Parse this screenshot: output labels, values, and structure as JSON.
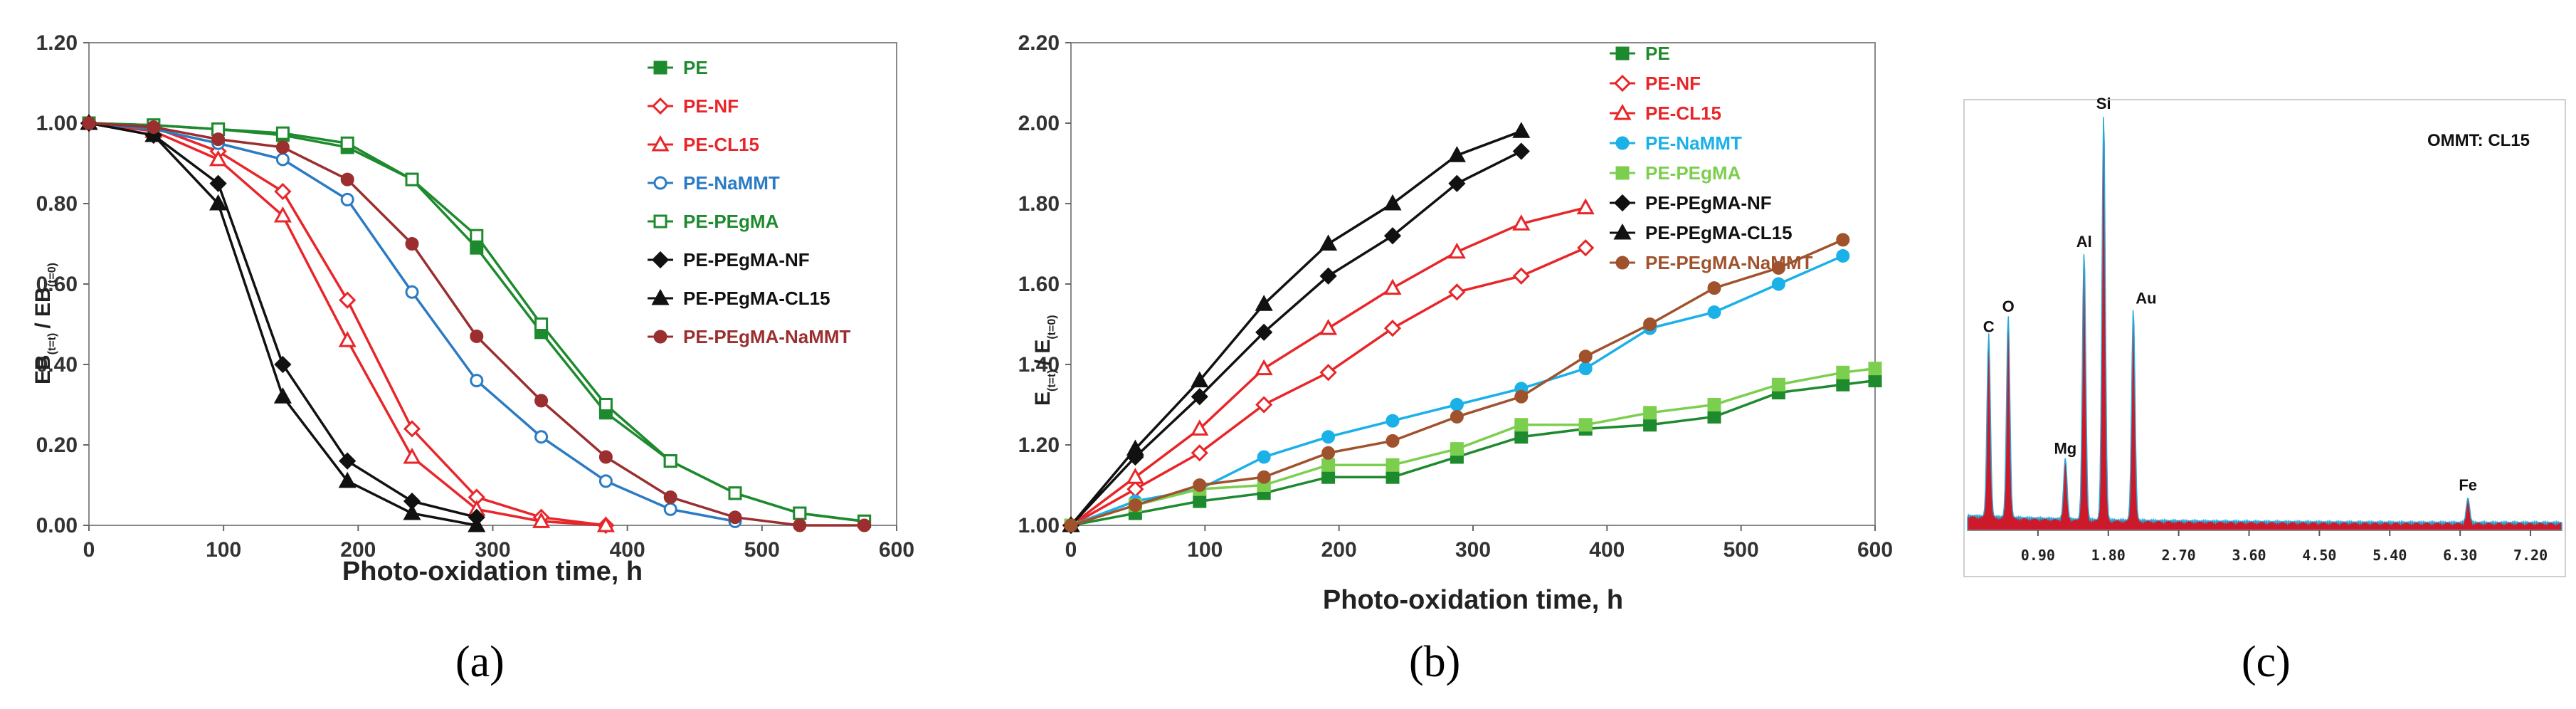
{
  "chart_data": [
    {
      "type": "line",
      "panel_label": "(a)",
      "xlabel": "Photo-oxidation time, h",
      "ylabel": "EB (t=t) / EB (t=0)",
      "ylabel_main": "EB",
      "ylabel_sub1": "(t=t)",
      "ylabel_sep": "/ EB",
      "ylabel_sub2": "(t=0)",
      "xlim": [
        0,
        600
      ],
      "ylim": [
        0,
        1.2
      ],
      "xticks": [
        "0",
        "100",
        "200",
        "300",
        "400",
        "500",
        "600"
      ],
      "yticks": [
        "0.00",
        "0.20",
        "0.40",
        "0.60",
        "0.80",
        "1.00",
        "1.20"
      ],
      "series": [
        {
          "name": "PE",
          "color": "#1e8a2e",
          "marker": "square-filled",
          "x": [
            0,
            48,
            96,
            144,
            192,
            240,
            288,
            336,
            384,
            432,
            480,
            528,
            576
          ],
          "y": [
            1.0,
            0.995,
            0.985,
            0.97,
            0.94,
            0.86,
            0.69,
            0.48,
            0.28,
            0.16,
            0.08,
            0.03,
            0.01
          ]
        },
        {
          "name": "PE-NF",
          "color": "#e8262a",
          "marker": "diamond-open",
          "x": [
            0,
            48,
            96,
            144,
            192,
            240,
            288,
            336,
            384
          ],
          "y": [
            1.0,
            0.99,
            0.93,
            0.83,
            0.56,
            0.24,
            0.07,
            0.02,
            0.0
          ]
        },
        {
          "name": "PE-CL15",
          "color": "#e8262a",
          "marker": "triangle-open",
          "x": [
            0,
            48,
            96,
            144,
            192,
            240,
            288,
            336,
            384
          ],
          "y": [
            1.0,
            0.98,
            0.91,
            0.77,
            0.46,
            0.17,
            0.04,
            0.01,
            0.0
          ]
        },
        {
          "name": "PE-NaMMT",
          "color": "#2b7bc4",
          "marker": "circle-open",
          "x": [
            0,
            48,
            96,
            144,
            192,
            240,
            288,
            336,
            384,
            432,
            480
          ],
          "y": [
            1.0,
            0.985,
            0.95,
            0.91,
            0.81,
            0.58,
            0.36,
            0.22,
            0.11,
            0.04,
            0.01
          ]
        },
        {
          "name": "PE-PEgMA",
          "color": "#1e8a2e",
          "marker": "square-open",
          "x": [
            0,
            48,
            96,
            144,
            192,
            240,
            288,
            336,
            384,
            432,
            480,
            528,
            576
          ],
          "y": [
            1.0,
            0.995,
            0.985,
            0.975,
            0.95,
            0.86,
            0.72,
            0.5,
            0.3,
            0.16,
            0.08,
            0.03,
            0.01
          ]
        },
        {
          "name": "PE-PEgMA-NF",
          "color": "#111111",
          "marker": "diamond-filled",
          "x": [
            0,
            48,
            96,
            144,
            192,
            240,
            288
          ],
          "y": [
            1.0,
            0.97,
            0.85,
            0.4,
            0.16,
            0.06,
            0.02
          ]
        },
        {
          "name": "PE-PEgMA-CL15",
          "color": "#111111",
          "marker": "triangle-filled",
          "x": [
            0,
            48,
            96,
            144,
            192,
            240,
            288
          ],
          "y": [
            1.0,
            0.97,
            0.8,
            0.32,
            0.11,
            0.03,
            0.0
          ]
        },
        {
          "name": "PE-PEgMA-NaMMT",
          "color": "#9b2e2e",
          "marker": "circle-filled",
          "x": [
            0,
            48,
            96,
            144,
            192,
            240,
            288,
            336,
            384,
            432,
            480,
            528,
            576
          ],
          "y": [
            1.0,
            0.99,
            0.96,
            0.94,
            0.86,
            0.7,
            0.47,
            0.31,
            0.17,
            0.07,
            0.02,
            0.0,
            0.0
          ]
        }
      ]
    },
    {
      "type": "line",
      "panel_label": "(b)",
      "xlabel": "Photo-oxidation time, h",
      "ylabel": "E (t=t) / E (t=0)",
      "ylabel_main": "E",
      "ylabel_sub1": "(t=t)",
      "ylabel_sep": "/ E",
      "ylabel_sub2": "(t=0)",
      "xlim": [
        0,
        600
      ],
      "ylim": [
        1.0,
        2.2
      ],
      "xticks": [
        "0",
        "100",
        "200",
        "300",
        "400",
        "500",
        "600"
      ],
      "yticks": [
        "1.00",
        "1.20",
        "1.40",
        "1.60",
        "1.80",
        "2.00",
        "2.20"
      ],
      "series": [
        {
          "name": "PE",
          "color": "#1e8a2e",
          "marker": "square-filled",
          "x": [
            0,
            48,
            96,
            144,
            192,
            240,
            288,
            336,
            384,
            432,
            480,
            528,
            576,
            600
          ],
          "y": [
            1.0,
            1.03,
            1.06,
            1.08,
            1.12,
            1.12,
            1.17,
            1.22,
            1.24,
            1.25,
            1.27,
            1.33,
            1.35,
            1.36
          ]
        },
        {
          "name": "PE-NF",
          "color": "#e8262a",
          "marker": "diamond-open",
          "x": [
            0,
            48,
            96,
            144,
            192,
            240,
            288,
            336,
            384
          ],
          "y": [
            1.0,
            1.09,
            1.18,
            1.3,
            1.38,
            1.49,
            1.58,
            1.62,
            1.69
          ]
        },
        {
          "name": "PE-CL15",
          "color": "#e8262a",
          "marker": "triangle-open",
          "x": [
            0,
            48,
            96,
            144,
            192,
            240,
            288,
            336,
            384
          ],
          "y": [
            1.0,
            1.12,
            1.24,
            1.39,
            1.49,
            1.59,
            1.68,
            1.75,
            1.79
          ]
        },
        {
          "name": "PE-NaMMT",
          "color": "#1ab0e8",
          "marker": "circle-filled",
          "x": [
            0,
            48,
            96,
            144,
            192,
            240,
            288,
            336,
            384,
            432,
            480,
            528,
            576
          ],
          "y": [
            1.0,
            1.06,
            1.09,
            1.17,
            1.22,
            1.26,
            1.3,
            1.34,
            1.39,
            1.49,
            1.53,
            1.6,
            1.67
          ]
        },
        {
          "name": "PE-PEgMA",
          "color": "#7ccf4e",
          "marker": "square-filled",
          "x": [
            0,
            48,
            96,
            144,
            192,
            240,
            288,
            336,
            384,
            432,
            480,
            528,
            576,
            600
          ],
          "y": [
            1.0,
            1.05,
            1.09,
            1.1,
            1.15,
            1.15,
            1.19,
            1.25,
            1.25,
            1.28,
            1.3,
            1.35,
            1.38,
            1.39
          ]
        },
        {
          "name": "PE-PEgMA-NF",
          "color": "#111111",
          "marker": "diamond-filled",
          "x": [
            0,
            48,
            96,
            144,
            192,
            240,
            288,
            336
          ],
          "y": [
            1.0,
            1.17,
            1.32,
            1.48,
            1.62,
            1.72,
            1.85,
            1.93
          ]
        },
        {
          "name": "PE-PEgMA-CL15",
          "color": "#111111",
          "marker": "triangle-filled",
          "x": [
            0,
            48,
            96,
            144,
            192,
            240,
            288,
            336
          ],
          "y": [
            1.0,
            1.19,
            1.36,
            1.55,
            1.7,
            1.8,
            1.92,
            1.98
          ]
        },
        {
          "name": "PE-PEgMA-NaMMT",
          "color": "#a0522d",
          "marker": "circle-filled",
          "x": [
            0,
            48,
            96,
            144,
            192,
            240,
            288,
            336,
            384,
            432,
            480,
            528,
            576
          ],
          "y": [
            1.0,
            1.05,
            1.1,
            1.12,
            1.18,
            1.21,
            1.27,
            1.32,
            1.42,
            1.5,
            1.59,
            1.64,
            1.71
          ]
        }
      ]
    },
    {
      "type": "spectrum",
      "panel_label": "(c)",
      "title": "OMMT: CL15",
      "xticks": [
        "0.90",
        "1.80",
        "2.70",
        "3.60",
        "4.50",
        "5.40",
        "6.30",
        "7.20"
      ],
      "xlim": [
        0,
        7.6
      ],
      "peaks": [
        {
          "label": "C",
          "x": 0.27,
          "h": 0.45
        },
        {
          "label": "O",
          "x": 0.52,
          "h": 0.5
        },
        {
          "label": "Mg",
          "x": 1.25,
          "h": 0.15
        },
        {
          "label": "Al",
          "x": 1.49,
          "h": 0.66
        },
        {
          "label": "Si",
          "x": 1.74,
          "h": 1.0
        },
        {
          "label": "Au",
          "x": 2.12,
          "h": 0.52
        },
        {
          "label": "Fe",
          "x": 6.4,
          "h": 0.06
        }
      ],
      "fill_color": "#cc1a2a",
      "line_color": "#2aa8d8"
    }
  ]
}
